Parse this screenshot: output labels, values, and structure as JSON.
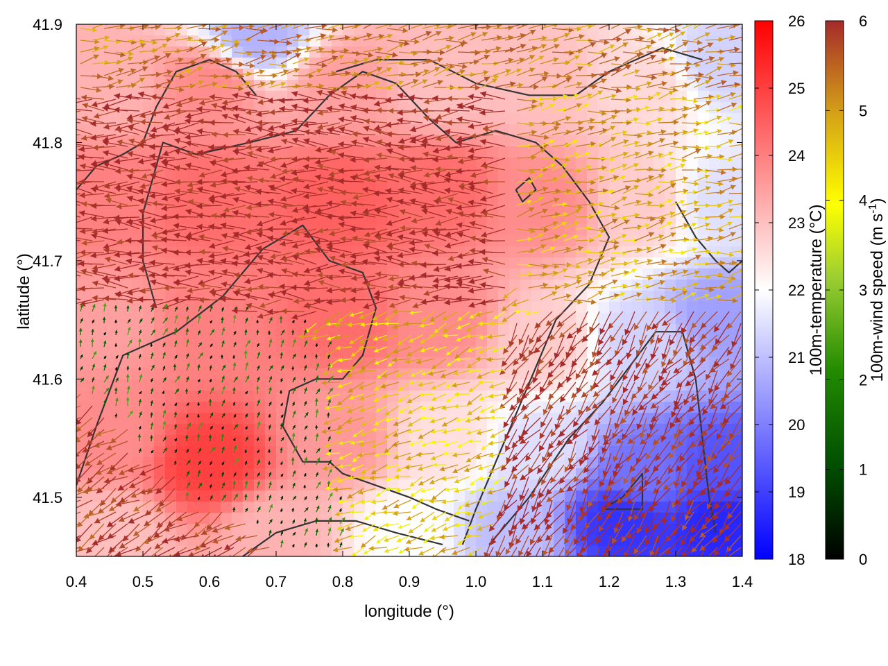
{
  "chart_data": {
    "type": "heatmap",
    "subtype": "temperature field with wind vectors and terrain contours",
    "xlabel": "longitude (°)",
    "ylabel": "latitude (°)",
    "xlim": [
      0.4,
      1.4
    ],
    "ylim": [
      41.45,
      41.9
    ],
    "xticks": [
      0.4,
      0.5,
      0.6,
      0.7,
      0.8,
      0.9,
      1.0,
      1.1,
      1.2,
      1.3,
      1.4
    ],
    "xtick_labels": [
      "0.4",
      "0.5",
      "0.6",
      "0.7",
      "0.8",
      "0.9",
      "1.0",
      "1.1",
      "1.2",
      "1.3",
      "1.4"
    ],
    "yticks": [
      41.5,
      41.6,
      41.7,
      41.8,
      41.9
    ],
    "ytick_labels": [
      "41.5",
      "41.6",
      "41.7",
      "41.8",
      "41.9"
    ],
    "grid": false,
    "temperature": {
      "colorbar_label": "100m-temperature (°C)",
      "range": [
        18,
        26
      ],
      "ticks": [
        "18",
        "19",
        "20",
        "21",
        "22",
        "23",
        "24",
        "25",
        "26"
      ],
      "colors": {
        "low": "#0000ff",
        "mid": "#ffffff",
        "high": "#ff0000"
      },
      "anchors": [
        {
          "lon": 0.45,
          "lat": 41.85,
          "t": 23.2
        },
        {
          "lon": 0.6,
          "lat": 41.85,
          "t": 23.8
        },
        {
          "lon": 0.8,
          "lat": 41.85,
          "t": 23.5
        },
        {
          "lon": 0.95,
          "lat": 41.85,
          "t": 23.0
        },
        {
          "lon": 1.1,
          "lat": 41.85,
          "t": 23.0
        },
        {
          "lon": 1.25,
          "lat": 41.85,
          "t": 22.6
        },
        {
          "lon": 1.37,
          "lat": 41.87,
          "t": 21.3
        },
        {
          "lon": 0.67,
          "lat": 41.89,
          "t": 20.8
        },
        {
          "lon": 0.45,
          "lat": 41.75,
          "t": 24.0
        },
        {
          "lon": 0.6,
          "lat": 41.75,
          "t": 24.3
        },
        {
          "lon": 0.8,
          "lat": 41.75,
          "t": 24.5
        },
        {
          "lon": 0.95,
          "lat": 41.76,
          "t": 24.3
        },
        {
          "lon": 1.1,
          "lat": 41.75,
          "t": 23.8
        },
        {
          "lon": 1.25,
          "lat": 41.75,
          "t": 22.8
        },
        {
          "lon": 1.37,
          "lat": 41.75,
          "t": 21.5
        },
        {
          "lon": 0.45,
          "lat": 41.65,
          "t": 23.5
        },
        {
          "lon": 0.6,
          "lat": 41.65,
          "t": 24.0
        },
        {
          "lon": 0.8,
          "lat": 41.65,
          "t": 24.3
        },
        {
          "lon": 0.95,
          "lat": 41.65,
          "t": 23.8
        },
        {
          "lon": 1.1,
          "lat": 41.63,
          "t": 22.8
        },
        {
          "lon": 1.25,
          "lat": 41.63,
          "t": 21.3
        },
        {
          "lon": 1.37,
          "lat": 41.65,
          "t": 20.5
        },
        {
          "lon": 0.45,
          "lat": 41.55,
          "t": 23.8
        },
        {
          "lon": 0.6,
          "lat": 41.53,
          "t": 25.0
        },
        {
          "lon": 0.8,
          "lat": 41.55,
          "t": 23.6
        },
        {
          "lon": 0.95,
          "lat": 41.55,
          "t": 22.5
        },
        {
          "lon": 1.1,
          "lat": 41.54,
          "t": 21.5
        },
        {
          "lon": 1.25,
          "lat": 41.52,
          "t": 19.8
        },
        {
          "lon": 1.37,
          "lat": 41.52,
          "t": 19.3
        },
        {
          "lon": 0.45,
          "lat": 41.47,
          "t": 23.0
        },
        {
          "lon": 0.7,
          "lat": 41.47,
          "t": 23.2
        },
        {
          "lon": 0.9,
          "lat": 41.47,
          "t": 22.0
        },
        {
          "lon": 1.05,
          "lat": 41.47,
          "t": 21.0
        },
        {
          "lon": 1.22,
          "lat": 41.48,
          "t": 18.8
        },
        {
          "lon": 1.37,
          "lat": 41.48,
          "t": 18.6
        }
      ]
    },
    "wind": {
      "colorbar_label": "100m-wind speed (m s-1)",
      "range": [
        0,
        6
      ],
      "ticks": [
        "0",
        "1",
        "2",
        "3",
        "4",
        "5",
        "6"
      ],
      "colors": [
        "#000000",
        "#006400",
        "#9acd32",
        "#ffff00",
        "#d4a017",
        "#b8602a",
        "#a52a2a"
      ],
      "regions": [
        {
          "name": "westerly-jet",
          "lon_range": [
            0.4,
            1.05
          ],
          "lat_range": [
            41.66,
            41.84
          ],
          "speed": 6,
          "direction_deg": 270
        },
        {
          "name": "northern-band",
          "lon_range": [
            0.4,
            1.4
          ],
          "lat_range": [
            41.84,
            41.9
          ],
          "speed": 4.5,
          "direction_deg": 80
        },
        {
          "name": "northeast-yellow",
          "lon_range": [
            1.05,
            1.4
          ],
          "lat_range": [
            41.7,
            41.84
          ],
          "speed": 4,
          "direction_deg": 80
        },
        {
          "name": "calm-basin",
          "lon_range": [
            0.48,
            0.78
          ],
          "lat_range": [
            41.49,
            41.63
          ],
          "speed": 0.8,
          "direction_deg": 20
        },
        {
          "name": "southeast-flow",
          "lon_range": [
            1.05,
            1.4
          ],
          "lat_range": [
            41.45,
            41.65
          ],
          "speed": 5.8,
          "direction_deg": 215
        },
        {
          "name": "southwest-corner",
          "lon_range": [
            0.4,
            0.55
          ],
          "lat_range": [
            41.45,
            41.53
          ],
          "speed": 5.5,
          "direction_deg": 240
        },
        {
          "name": "central-transition",
          "lon_range": [
            0.78,
            1.05
          ],
          "lat_range": [
            41.5,
            41.66
          ],
          "speed": 3.5,
          "direction_deg": 250
        }
      ]
    },
    "contours": [
      {
        "name": "western-ridge",
        "points": [
          [
            0.4,
            41.51
          ],
          [
            0.43,
            41.56
          ],
          [
            0.47,
            41.62
          ],
          [
            0.55,
            41.64
          ],
          [
            0.62,
            41.67
          ],
          [
            0.68,
            41.71
          ],
          [
            0.74,
            41.73
          ],
          [
            0.78,
            41.7
          ],
          [
            0.83,
            41.69
          ],
          [
            0.85,
            41.66
          ],
          [
            0.83,
            41.62
          ],
          [
            0.8,
            41.6
          ],
          [
            0.76,
            41.6
          ],
          [
            0.72,
            41.59
          ],
          [
            0.71,
            41.56
          ],
          [
            0.74,
            41.53
          ],
          [
            0.78,
            41.53
          ],
          [
            0.8,
            41.52
          ],
          [
            0.85,
            41.51
          ],
          [
            0.9,
            41.5
          ],
          [
            0.94,
            41.49
          ],
          [
            0.99,
            41.48
          ]
        ]
      },
      {
        "name": "central-loop",
        "points": [
          [
            0.52,
            41.66
          ],
          [
            0.5,
            41.7
          ],
          [
            0.5,
            41.74
          ],
          [
            0.53,
            41.8
          ],
          [
            0.58,
            41.79
          ],
          [
            0.66,
            41.8
          ],
          [
            0.73,
            41.81
          ],
          [
            0.78,
            41.84
          ],
          [
            0.83,
            41.86
          ],
          [
            0.88,
            41.85
          ],
          [
            0.93,
            41.82
          ],
          [
            0.97,
            41.8
          ],
          [
            1.03,
            41.81
          ],
          [
            1.09,
            41.8
          ],
          [
            1.13,
            41.78
          ],
          [
            1.17,
            41.75
          ],
          [
            1.2,
            41.72
          ],
          [
            1.17,
            41.68
          ],
          [
            1.12,
            41.65
          ],
          [
            1.09,
            41.61
          ],
          [
            1.06,
            41.57
          ],
          [
            1.03,
            41.53
          ],
          [
            1.0,
            41.49
          ],
          [
            0.98,
            41.46
          ]
        ]
      },
      {
        "name": "eastern-trough",
        "points": [
          [
            1.02,
            41.46
          ],
          [
            1.08,
            41.5
          ],
          [
            1.14,
            41.55
          ],
          [
            1.19,
            41.58
          ],
          [
            1.23,
            41.61
          ],
          [
            1.27,
            41.64
          ],
          [
            1.31,
            41.64
          ],
          [
            1.33,
            41.6
          ],
          [
            1.34,
            41.55
          ],
          [
            1.35,
            41.5
          ],
          [
            1.36,
            41.47
          ]
        ]
      },
      {
        "name": "upper-left-loop",
        "points": [
          [
            0.4,
            41.76
          ],
          [
            0.43,
            41.78
          ],
          [
            0.47,
            41.79
          ],
          [
            0.5,
            41.8
          ],
          [
            0.52,
            41.83
          ],
          [
            0.55,
            41.86
          ],
          [
            0.6,
            41.87
          ],
          [
            0.64,
            41.86
          ],
          [
            0.67,
            41.84
          ]
        ]
      },
      {
        "name": "north-rim",
        "points": [
          [
            0.79,
            41.86
          ],
          [
            0.85,
            41.87
          ],
          [
            0.93,
            41.87
          ],
          [
            1.0,
            41.85
          ],
          [
            1.08,
            41.84
          ],
          [
            1.15,
            41.84
          ],
          [
            1.2,
            41.86
          ],
          [
            1.28,
            41.88
          ],
          [
            1.34,
            41.87
          ]
        ]
      },
      {
        "name": "northeast-ridge",
        "points": [
          [
            1.3,
            41.75
          ],
          [
            1.33,
            41.72
          ],
          [
            1.36,
            41.7
          ],
          [
            1.38,
            41.69
          ],
          [
            1.4,
            41.7
          ]
        ]
      },
      {
        "name": "small-island",
        "points": [
          [
            1.06,
            41.76
          ],
          [
            1.08,
            41.77
          ],
          [
            1.09,
            41.76
          ],
          [
            1.07,
            41.75
          ],
          [
            1.06,
            41.76
          ]
        ]
      },
      {
        "name": "southeast-blob",
        "points": [
          [
            1.19,
            41.49
          ],
          [
            1.22,
            41.5
          ],
          [
            1.25,
            41.52
          ],
          [
            1.25,
            41.49
          ],
          [
            1.22,
            41.49
          ],
          [
            1.19,
            41.49
          ]
        ]
      },
      {
        "name": "southern-ridge",
        "points": [
          [
            0.65,
            41.45
          ],
          [
            0.7,
            41.47
          ],
          [
            0.76,
            41.48
          ],
          [
            0.82,
            41.48
          ],
          [
            0.88,
            41.47
          ],
          [
            0.95,
            41.46
          ]
        ]
      }
    ]
  }
}
